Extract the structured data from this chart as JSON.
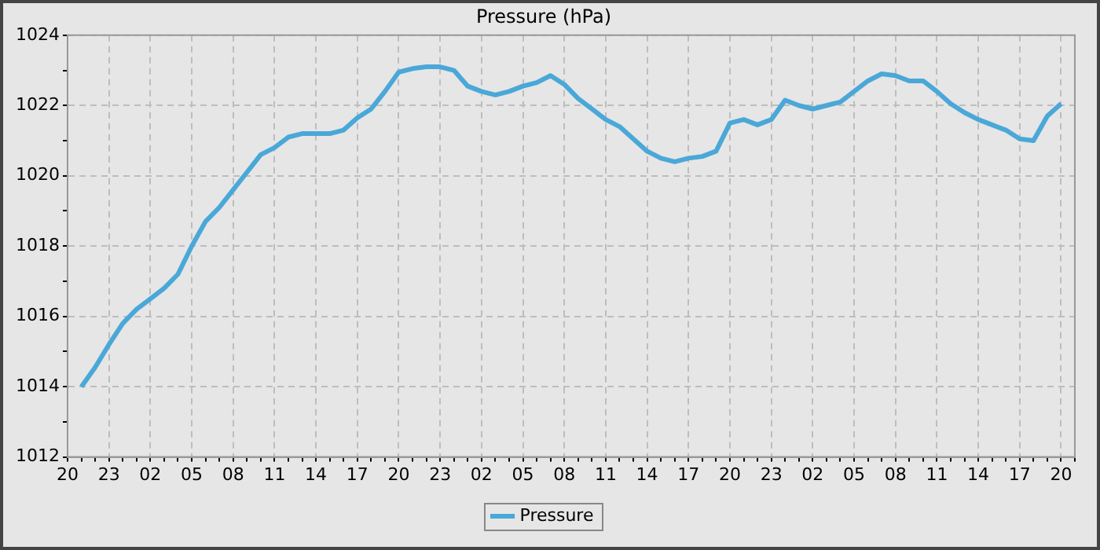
{
  "chart_data": {
    "type": "line",
    "title": "Pressure (hPa)",
    "legend": "bottom",
    "grid": true,
    "marker": "none",
    "line_style": "solid",
    "categories": [
      "20",
      null,
      null,
      "23",
      null,
      null,
      "02",
      null,
      null,
      "05",
      null,
      null,
      "08",
      null,
      null,
      "11",
      null,
      null,
      "14",
      null,
      null,
      "17",
      null,
      null,
      "20",
      null,
      null,
      "23",
      null,
      null,
      "02",
      null,
      null,
      "05",
      null,
      null,
      "08",
      null,
      null,
      "11",
      null,
      null,
      "14",
      null,
      null,
      "17",
      null,
      null,
      "20",
      null,
      null,
      "23",
      null,
      null,
      "02",
      null,
      null,
      "05",
      null,
      null,
      "08",
      null,
      null,
      "11",
      null,
      null,
      "14",
      null,
      null,
      "17",
      null,
      null,
      "20",
      null
    ],
    "ylim": [
      1012,
      1024
    ],
    "yticks": [
      1012,
      {
        "value": 1013,
        "label": null
      },
      1014,
      {
        "value": 1015,
        "label": null
      },
      1016,
      {
        "value": 1017,
        "label": null
      },
      1018,
      {
        "value": 1019,
        "label": null
      },
      1020,
      {
        "value": 1021,
        "label": null
      },
      1022,
      {
        "value": 1023,
        "label": null
      },
      1024
    ],
    "series": [
      {
        "name": "Pressure",
        "color": "#4aa8d8",
        "values": [
          null,
          1014.0,
          1014.55,
          1015.2,
          1015.8,
          1016.2,
          1016.5,
          1016.8,
          1017.2,
          1018.0,
          1018.7,
          1019.1,
          1019.6,
          1020.1,
          1020.6,
          1020.8,
          1021.1,
          1021.2,
          1021.2,
          1021.2,
          1021.3,
          1021.65,
          1021.9,
          1022.4,
          1022.95,
          1023.05,
          1023.1,
          1023.1,
          1023.0,
          1022.55,
          1022.4,
          1022.3,
          1022.4,
          1022.55,
          1022.65,
          1022.85,
          1022.6,
          1022.2,
          1021.9,
          1021.6,
          1021.4,
          1021.05,
          1020.7,
          1020.5,
          1020.4,
          1020.5,
          1020.55,
          1020.7,
          1021.5,
          1021.6,
          1021.45,
          1021.6,
          1022.15,
          1022.0,
          1021.9,
          1022.0,
          1022.1,
          1022.4,
          1022.7,
          1022.9,
          1022.85,
          1022.7,
          1022.7,
          1022.4,
          1022.05,
          1021.8,
          1021.6,
          1021.45,
          1021.3,
          1021.05,
          1021.0,
          1021.7,
          1022.05,
          null
        ]
      }
    ]
  }
}
